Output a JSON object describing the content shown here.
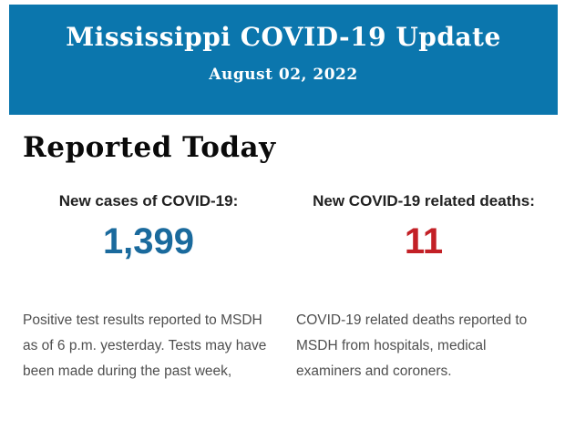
{
  "colors": {
    "header_bg": "#0b76ad",
    "header_text": "#ffffff",
    "cases_value": "#1a6a9d",
    "deaths_value": "#c32026",
    "body_text": "#4f4f4f"
  },
  "header": {
    "title": "Mississippi COVID-19 Update",
    "date": "August 02, 2022"
  },
  "main": {
    "section_title": "Reported Today",
    "stats": [
      {
        "label": "New cases of COVID-19:",
        "value": "1,399",
        "description": "Positive test results reported to MSDH as of 6 p.m. yesterday. Tests may have been made during the past week,"
      },
      {
        "label": "New COVID-19 related deaths:",
        "value": "11",
        "description": "COVID-19 related deaths reported to MSDH from hospitals, medical examiners and coroners."
      }
    ]
  }
}
